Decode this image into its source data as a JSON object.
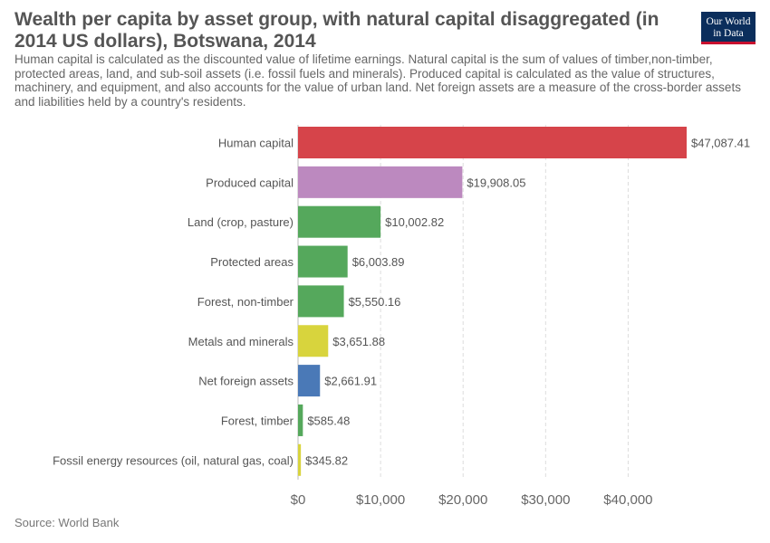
{
  "title": "Wealth per capita by asset group, with natural capital disaggregated (in 2014 US dollars), Botswana, 2014",
  "subtitle": "Human capital is calculated as the discounted value of lifetime earnings. Natural capital is the sum of values of timber,non-timber, protected areas, land, and sub-soil assets (i.e. fossil fuels and minerals). Produced capital is calculated as the value of structures, machinery, and equipment, and also accounts for the value of urban land. Net foreign assets are a measure of the cross-border assets and liabilities held by a country's residents.",
  "logo": {
    "line1": "Our World",
    "line2": "in Data"
  },
  "source": "Source: World Bank",
  "chart_data": {
    "type": "bar",
    "orientation": "horizontal",
    "categories": [
      "Human capital",
      "Produced capital",
      "Land (crop, pasture)",
      "Protected areas",
      "Forest, non-timber",
      "Metals and minerals",
      "Net foreign assets",
      "Forest, timber",
      "Fossil energy resources (oil, natural gas, coal)"
    ],
    "values": [
      47087.41,
      19908.05,
      10002.82,
      6003.89,
      5550.16,
      3651.88,
      2661.91,
      585.48,
      345.82
    ],
    "value_labels": [
      "$47,087.41",
      "$19,908.05",
      "$10,002.82",
      "$6,003.89",
      "$5,550.16",
      "$3,651.88",
      "$2,661.91",
      "$585.48",
      "$345.82"
    ],
    "colors": [
      "#d6444a",
      "#bc89bf",
      "#55a85c",
      "#55a85c",
      "#55a85c",
      "#d8d43d",
      "#4a79b7",
      "#55a85c",
      "#d8d43d"
    ],
    "xticks": [
      0,
      10000,
      20000,
      30000,
      40000
    ],
    "xtick_labels": [
      "$0",
      "$10,000",
      "$20,000",
      "$30,000",
      "$40,000"
    ],
    "xlim": [
      0,
      47087.41
    ],
    "grid": "vertical-dashed",
    "legend": "none"
  }
}
